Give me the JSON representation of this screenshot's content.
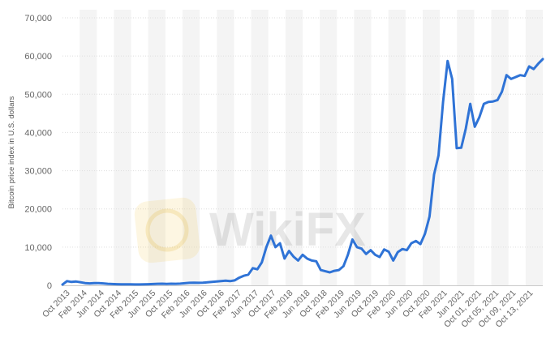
{
  "chart_data": {
    "type": "line",
    "ylabel": "Bitcoin price index in U.S. dollars",
    "ylim": [
      0,
      70000
    ],
    "yticks": [
      0,
      10000,
      20000,
      30000,
      40000,
      50000,
      60000,
      70000
    ],
    "ytick_labels": [
      "0",
      "10,000",
      "20,000",
      "30,000",
      "40,000",
      "50,000",
      "60,000",
      "70,000"
    ],
    "grid": true,
    "xtick_labels": [
      "Oct 2013",
      "Feb 2014",
      "Jun 2014",
      "Oct 2014",
      "Feb 2015",
      "Jun 2015",
      "Oct 2015",
      "Feb 2016",
      "Jun 2016",
      "Oct 2016",
      "Feb 2017",
      "Jun 2017",
      "Oct 2017",
      "Feb 2018",
      "Jun 2018",
      "Oct 2018",
      "Feb 2019",
      "Jun 2019",
      "Oct 2019",
      "Feb 2020",
      "Jun 2020",
      "Oct 2020",
      "Feb 2021",
      "Jun 2021",
      "Oct 01, 2021",
      "Oct 05, 2021",
      "Oct 09, 2021",
      "Oct 13, 2021"
    ],
    "series": [
      {
        "values": [
          200,
          1100,
          900,
          1000,
          800,
          600,
          500,
          600,
          600,
          500,
          400,
          350,
          300,
          250,
          280,
          250,
          230,
          240,
          250,
          300,
          350,
          400,
          430,
          380,
          420,
          400,
          450,
          550,
          650,
          700,
          650,
          700,
          780,
          900,
          1000,
          1100,
          1200,
          1100,
          1300,
          2000,
          2500,
          2800,
          4500,
          4200,
          6000,
          10000,
          13000,
          10000,
          11000,
          7000,
          9000,
          7500,
          6500,
          8000,
          7000,
          6500,
          6300,
          4000,
          3700,
          3400,
          3800,
          4000,
          5000,
          8000,
          12000,
          10000,
          9600,
          8200,
          9200,
          8000,
          7400,
          9400,
          8800,
          6500,
          8700,
          9500,
          9200,
          11000,
          11600,
          10800,
          13500,
          18000,
          29000,
          34000,
          48000,
          58700,
          54000,
          35900,
          36000,
          41000,
          47500,
          41500,
          44000,
          47500,
          48000,
          48100,
          48500,
          50700,
          55000,
          54000,
          54500,
          55000,
          54800,
          57300,
          56600,
          58000,
          59200
        ],
        "color": "#2f73d6"
      }
    ]
  },
  "watermark": {
    "text": "WikiFX"
  }
}
